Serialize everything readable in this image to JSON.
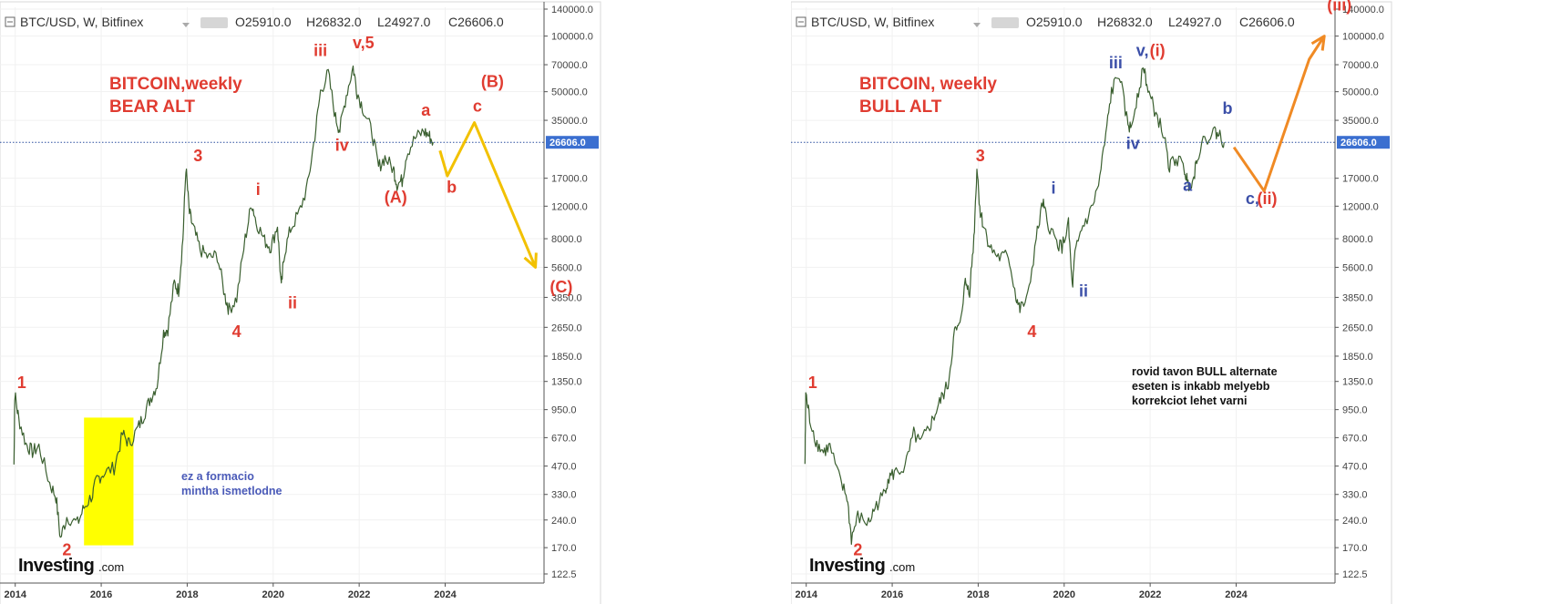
{
  "chart_data": [
    {
      "type": "line",
      "scale": "log",
      "grid": true,
      "header": {
        "symbol": "BTC/USD, W, Bitfinex",
        "open": "O25910.0",
        "high": "H26832.0",
        "low": "L24927.0",
        "close": "C26606.0"
      },
      "title_line1": "BITCOIN,weekly",
      "title_line2": "BEAR ALT",
      "note_lines": [
        "ez a formacio",
        "mintha ismetlodne"
      ],
      "brand": {
        "main": "Investing",
        "suffix": ".com"
      },
      "price_tag": "26606.0",
      "current_price": 26606,
      "x_ticks": [
        {
          "label": "2014",
          "x": 2014.0
        },
        {
          "label": "2016",
          "x": 2016.0
        },
        {
          "label": "2018",
          "x": 2018.0
        },
        {
          "label": "2020",
          "x": 2020.0
        },
        {
          "label": "2022",
          "x": 2022.0
        },
        {
          "label": "2024",
          "x": 2024.0
        }
      ],
      "y_ticks": [
        {
          "label": "140000.0",
          "v": 140000
        },
        {
          "label": "100000.0",
          "v": 100000
        },
        {
          "label": "70000.0",
          "v": 70000
        },
        {
          "label": "50000.0",
          "v": 50000
        },
        {
          "label": "35000.0",
          "v": 35000
        },
        {
          "label": "17000.0",
          "v": 17000
        },
        {
          "label": "12000.0",
          "v": 12000
        },
        {
          "label": "8000.0",
          "v": 8000
        },
        {
          "label": "5600.0",
          "v": 5600
        },
        {
          "label": "3850.0",
          "v": 3850
        },
        {
          "label": "2650.0",
          "v": 2650
        },
        {
          "label": "1850.0",
          "v": 1850
        },
        {
          "label": "1350.0",
          "v": 1350
        },
        {
          "label": "950.0",
          "v": 950
        },
        {
          "label": "670.0",
          "v": 670
        },
        {
          "label": "470.0",
          "v": 470
        },
        {
          "label": "330.0",
          "v": 330
        },
        {
          "label": "240.0",
          "v": 240
        },
        {
          "label": "170.0",
          "v": 170
        },
        {
          "label": "122.5",
          "v": 122.5
        }
      ],
      "price_path": [
        [
          2013.97,
          480
        ],
        [
          2013.99,
          1150
        ],
        [
          2014.08,
          850
        ],
        [
          2014.25,
          620
        ],
        [
          2014.4,
          560
        ],
        [
          2014.55,
          600
        ],
        [
          2014.8,
          380
        ],
        [
          2014.95,
          320
        ],
        [
          2015.05,
          190
        ],
        [
          2015.2,
          250
        ],
        [
          2015.45,
          230
        ],
        [
          2015.6,
          280
        ],
        [
          2015.8,
          330
        ],
        [
          2015.9,
          400
        ],
        [
          2016.05,
          430
        ],
        [
          2016.3,
          460
        ],
        [
          2016.5,
          700
        ],
        [
          2016.65,
          620
        ],
        [
          2016.85,
          750
        ],
        [
          2017.0,
          900
        ],
        [
          2017.15,
          1100
        ],
        [
          2017.3,
          1300
        ],
        [
          2017.45,
          2500
        ],
        [
          2017.55,
          2600
        ],
        [
          2017.7,
          4600
        ],
        [
          2017.8,
          4200
        ],
        [
          2017.9,
          8000
        ],
        [
          2017.97,
          19500
        ],
        [
          2018.05,
          11000
        ],
        [
          2018.15,
          9000
        ],
        [
          2018.3,
          7000
        ],
        [
          2018.5,
          6300
        ],
        [
          2018.7,
          6500
        ],
        [
          2018.88,
          3900
        ],
        [
          2018.97,
          3300
        ],
        [
          2019.15,
          3800
        ],
        [
          2019.35,
          8000
        ],
        [
          2019.5,
          12500
        ],
        [
          2019.6,
          10000
        ],
        [
          2019.8,
          7800
        ],
        [
          2019.95,
          7200
        ],
        [
          2020.1,
          9500
        ],
        [
          2020.19,
          4300
        ],
        [
          2020.25,
          6500
        ],
        [
          2020.4,
          9000
        ],
        [
          2020.6,
          11000
        ],
        [
          2020.8,
          15500
        ],
        [
          2020.97,
          29000
        ],
        [
          2021.1,
          50000
        ],
        [
          2021.28,
          63000
        ],
        [
          2021.45,
          36000
        ],
        [
          2021.55,
          31000
        ],
        [
          2021.7,
          48000
        ],
        [
          2021.86,
          68000
        ],
        [
          2021.95,
          50000
        ],
        [
          2022.1,
          40000
        ],
        [
          2022.3,
          30000
        ],
        [
          2022.45,
          19500
        ],
        [
          2022.6,
          22000
        ],
        [
          2022.8,
          19000
        ],
        [
          2022.88,
          15800
        ],
        [
          2023.0,
          16500
        ],
        [
          2023.1,
          23000
        ],
        [
          2023.3,
          28000
        ],
        [
          2023.5,
          30500
        ],
        [
          2023.62,
          29000
        ],
        [
          2023.72,
          26606
        ]
      ],
      "projection": [
        [
          2023.88,
          24000
        ],
        [
          2024.05,
          17500
        ],
        [
          2024.68,
          34000
        ],
        [
          2026.1,
          5600
        ]
      ],
      "projection_color": "#f2c100",
      "highlight_box": {
        "x0": 2015.6,
        "x1": 2016.75,
        "y0": 175,
        "y1": 860,
        "color": "#ffff00"
      },
      "wave_labels": [
        {
          "text": "1",
          "x": 2014.15,
          "y": 1240,
          "color": "#e03c31"
        },
        {
          "text": "2",
          "x": 2015.2,
          "y": 155,
          "color": "#e03c31"
        },
        {
          "text": "3",
          "x": 2018.25,
          "y": 21000,
          "color": "#e03c31"
        },
        {
          "text": "4",
          "x": 2019.15,
          "y": 2350,
          "color": "#e03c31"
        },
        {
          "text": "i",
          "x": 2019.65,
          "y": 13800,
          "color": "#e03c31"
        },
        {
          "text": "ii",
          "x": 2020.45,
          "y": 3350,
          "color": "#e03c31"
        },
        {
          "text": "iii",
          "x": 2021.1,
          "y": 78000,
          "color": "#e03c31"
        },
        {
          "text": "iv",
          "x": 2021.6,
          "y": 24000,
          "color": "#e03c31"
        },
        {
          "text": "v,5",
          "x": 2022.1,
          "y": 86000,
          "color": "#e03c31"
        },
        {
          "text": "a",
          "x": 2023.55,
          "y": 37000,
          "color": "#e03c31"
        },
        {
          "text": "(A)",
          "x": 2022.85,
          "y": 12500,
          "color": "#e03c31"
        },
        {
          "text": "b",
          "x": 2024.15,
          "y": 14200,
          "color": "#e03c31"
        },
        {
          "text": "c",
          "x": 2024.75,
          "y": 39000,
          "color": "#e03c31"
        },
        {
          "text": "(B)",
          "x": 2025.1,
          "y": 53000,
          "color": "#e03c31"
        },
        {
          "text": "(C)",
          "x": 2026.7,
          "y": 4100,
          "color": "#e03c31"
        }
      ]
    },
    {
      "type": "line",
      "scale": "log",
      "grid": true,
      "header": {
        "symbol": "BTC/USD, W, Bitfinex",
        "open": "O25910.0",
        "high": "H26832.0",
        "low": "L24927.0",
        "close": "C26606.0"
      },
      "title_line1": "BITCOIN, weekly",
      "title_line2": "BULL ALT",
      "note_lines": [
        "rovid tavon BULL alternate",
        "eseten is inkabb melyebb",
        "korrekciot lehet varni"
      ],
      "brand": {
        "main": "Investing",
        "suffix": ".com"
      },
      "price_tag": "26606.0",
      "current_price": 26606,
      "x_ticks": [
        {
          "label": "2014",
          "x": 2014.0
        },
        {
          "label": "2016",
          "x": 2016.0
        },
        {
          "label": "2018",
          "x": 2018.0
        },
        {
          "label": "2020",
          "x": 2020.0
        },
        {
          "label": "2022",
          "x": 2022.0
        },
        {
          "label": "2024",
          "x": 2024.0
        }
      ],
      "y_ticks": [
        {
          "label": "140000.0",
          "v": 140000
        },
        {
          "label": "100000.0",
          "v": 100000
        },
        {
          "label": "70000.0",
          "v": 70000
        },
        {
          "label": "50000.0",
          "v": 50000
        },
        {
          "label": "35000.0",
          "v": 35000
        },
        {
          "label": "17000.0",
          "v": 17000
        },
        {
          "label": "12000.0",
          "v": 12000
        },
        {
          "label": "8000.0",
          "v": 8000
        },
        {
          "label": "5600.0",
          "v": 5600
        },
        {
          "label": "3850.0",
          "v": 3850
        },
        {
          "label": "2650.0",
          "v": 2650
        },
        {
          "label": "1850.0",
          "v": 1850
        },
        {
          "label": "1350.0",
          "v": 1350
        },
        {
          "label": "950.0",
          "v": 950
        },
        {
          "label": "670.0",
          "v": 670
        },
        {
          "label": "470.0",
          "v": 470
        },
        {
          "label": "330.0",
          "v": 330
        },
        {
          "label": "240.0",
          "v": 240
        },
        {
          "label": "170.0",
          "v": 170
        },
        {
          "label": "122.5",
          "v": 122.5
        }
      ],
      "price_path": [
        [
          2013.97,
          480
        ],
        [
          2013.99,
          1150
        ],
        [
          2014.08,
          850
        ],
        [
          2014.25,
          620
        ],
        [
          2014.4,
          560
        ],
        [
          2014.55,
          600
        ],
        [
          2014.8,
          380
        ],
        [
          2014.95,
          320
        ],
        [
          2015.05,
          190
        ],
        [
          2015.2,
          250
        ],
        [
          2015.45,
          230
        ],
        [
          2015.6,
          280
        ],
        [
          2015.8,
          330
        ],
        [
          2015.9,
          400
        ],
        [
          2016.05,
          430
        ],
        [
          2016.3,
          460
        ],
        [
          2016.5,
          700
        ],
        [
          2016.65,
          620
        ],
        [
          2016.85,
          750
        ],
        [
          2017.0,
          900
        ],
        [
          2017.15,
          1100
        ],
        [
          2017.3,
          1300
        ],
        [
          2017.45,
          2500
        ],
        [
          2017.55,
          2600
        ],
        [
          2017.7,
          4600
        ],
        [
          2017.8,
          4200
        ],
        [
          2017.9,
          8000
        ],
        [
          2017.97,
          19500
        ],
        [
          2018.05,
          11000
        ],
        [
          2018.15,
          9000
        ],
        [
          2018.3,
          7000
        ],
        [
          2018.5,
          6300
        ],
        [
          2018.7,
          6500
        ],
        [
          2018.88,
          3900
        ],
        [
          2018.97,
          3300
        ],
        [
          2019.15,
          3800
        ],
        [
          2019.35,
          8000
        ],
        [
          2019.5,
          12500
        ],
        [
          2019.6,
          10000
        ],
        [
          2019.8,
          7800
        ],
        [
          2019.95,
          7200
        ],
        [
          2020.1,
          9500
        ],
        [
          2020.19,
          4300
        ],
        [
          2020.25,
          6500
        ],
        [
          2020.4,
          9000
        ],
        [
          2020.6,
          11000
        ],
        [
          2020.8,
          15500
        ],
        [
          2020.97,
          29000
        ],
        [
          2021.1,
          50000
        ],
        [
          2021.28,
          63000
        ],
        [
          2021.45,
          36000
        ],
        [
          2021.55,
          31000
        ],
        [
          2021.7,
          48000
        ],
        [
          2021.86,
          68000
        ],
        [
          2021.95,
          50000
        ],
        [
          2022.1,
          40000
        ],
        [
          2022.3,
          30000
        ],
        [
          2022.45,
          19500
        ],
        [
          2022.6,
          22000
        ],
        [
          2022.8,
          19000
        ],
        [
          2022.88,
          15800
        ],
        [
          2023.0,
          16500
        ],
        [
          2023.1,
          23000
        ],
        [
          2023.3,
          28000
        ],
        [
          2023.5,
          30500
        ],
        [
          2023.62,
          29000
        ],
        [
          2023.72,
          26606
        ]
      ],
      "projection": [
        [
          2023.95,
          25000
        ],
        [
          2024.65,
          14500
        ],
        [
          2025.7,
          75000
        ],
        [
          2026.05,
          100000
        ]
      ],
      "projection_color": "#f08a24",
      "highlight_box": null,
      "wave_labels": [
        {
          "text": "1",
          "x": 2014.15,
          "y": 1240,
          "color": "#e03c31"
        },
        {
          "text": "2",
          "x": 2015.2,
          "y": 155,
          "color": "#e03c31"
        },
        {
          "text": "3",
          "x": 2018.05,
          "y": 21000,
          "color": "#e03c31"
        },
        {
          "text": "4",
          "x": 2019.25,
          "y": 2350,
          "color": "#e03c31"
        },
        {
          "text": "i",
          "x": 2019.75,
          "y": 14000,
          "color": "#3b4fa8"
        },
        {
          "text": "ii",
          "x": 2020.45,
          "y": 3900,
          "color": "#3b4fa8"
        },
        {
          "text": "iii",
          "x": 2021.2,
          "y": 67000,
          "color": "#3b4fa8"
        },
        {
          "text": "iv",
          "x": 2021.6,
          "y": 24500,
          "color": "#3b4fa8"
        },
        {
          "text": "v,",
          "x": 2021.82,
          "y": 78000,
          "color": "#3b4fa8"
        },
        {
          "text": "(i)",
          "x": 2022.17,
          "y": 78000,
          "color": "#e03c31"
        },
        {
          "text": "a",
          "x": 2022.87,
          "y": 14500,
          "color": "#3b4fa8"
        },
        {
          "text": "b",
          "x": 2023.8,
          "y": 38000,
          "color": "#3b4fa8"
        },
        {
          "text": "c,",
          "x": 2024.38,
          "y": 12300,
          "color": "#3b4fa8"
        },
        {
          "text": "(ii)",
          "x": 2024.72,
          "y": 12300,
          "color": "#e03c31"
        },
        {
          "text": "(iii)",
          "x": 2026.4,
          "y": 138000,
          "color": "#e03c31"
        }
      ]
    }
  ]
}
